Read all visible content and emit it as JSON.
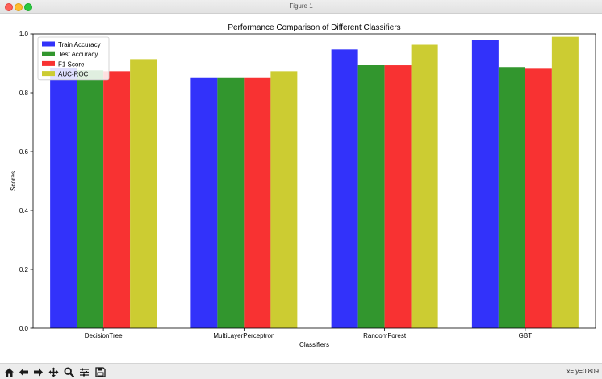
{
  "window": {
    "title": "Figure 1"
  },
  "toolbar": {
    "tools": [
      "home-icon",
      "back-arrow-icon",
      "forward-arrow-icon",
      "pan-icon",
      "zoom-icon",
      "configure-subplots-icon",
      "save-icon"
    ],
    "coords_text": "x= y=0.809"
  },
  "chart_data": {
    "type": "bar",
    "title": "Performance Comparison of Different Classifiers",
    "xlabel": "Classifiers",
    "ylabel": "Scores",
    "categories": [
      "DecisionTree",
      "MultiLayerPerceptron",
      "RandomForest",
      "GBT"
    ],
    "series": [
      {
        "name": "Train Accuracy",
        "color": "#3232fa",
        "values": [
          0.885,
          0.85,
          0.947,
          0.98
        ]
      },
      {
        "name": "Test Accuracy",
        "color": "#32962e",
        "values": [
          0.876,
          0.85,
          0.895,
          0.887
        ]
      },
      {
        "name": "F1 Score",
        "color": "#f83232",
        "values": [
          0.873,
          0.85,
          0.893,
          0.884
        ]
      },
      {
        "name": "AUC-ROC",
        "color": "#cccc32",
        "values": [
          0.914,
          0.873,
          0.963,
          0.99
        ]
      }
    ],
    "ylim": [
      0,
      1.0
    ],
    "yticks": [
      "0.0",
      "0.2",
      "0.4",
      "0.6",
      "0.8",
      "1.0"
    ],
    "legend": "top-left",
    "grid": false
  }
}
